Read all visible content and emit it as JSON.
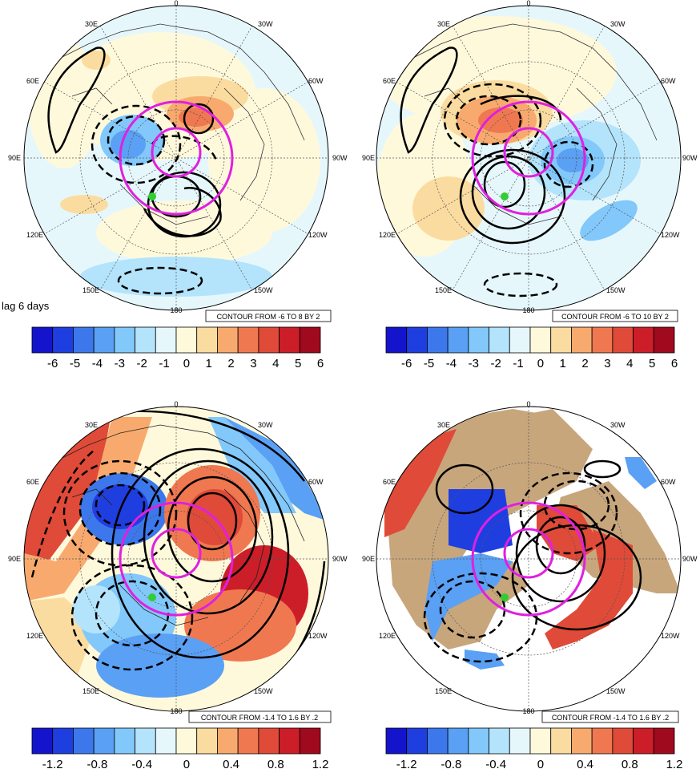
{
  "figure_label": "lag 6 days",
  "colors": {
    "magenta": "#e020e0",
    "marker": "#33cc33",
    "land": "#c8a67c",
    "contour": "#000000"
  },
  "panels": [
    {
      "id": "top-left",
      "lon_labels": {
        "top": "0",
        "top_right": "30W",
        "right_upper": "60W",
        "right": "90W",
        "right_lower": "120W",
        "bottom_right": "150W",
        "bottom": "180",
        "bottom_left": "150E",
        "left_lower": "120E",
        "left": "90E",
        "left_upper": "60E",
        "top_left": "30E"
      },
      "contour_note": "CONTOUR FROM -6 TO 8 BY 2",
      "colorbar": {
        "colors": [
          "#1414cc",
          "#1f3ee0",
          "#3c78ec",
          "#5aa0f4",
          "#82c8fa",
          "#b4e4fc",
          "#e6f7fc",
          "#fff9dc",
          "#fbdca0",
          "#f8aa6e",
          "#f07850",
          "#e04a38",
          "#cc1e28",
          "#a00a1e"
        ],
        "ticks": [
          "-6",
          "-5",
          "-4",
          "-3",
          "-2",
          "-1",
          "0",
          "1",
          "2",
          "3",
          "4",
          "5",
          "6"
        ]
      }
    },
    {
      "id": "top-right",
      "lon_labels": {
        "top": "0",
        "top_right": "30W",
        "right_upper": "60W",
        "right": "90W",
        "right_lower": "120W",
        "bottom_right": "150W",
        "bottom": "180",
        "bottom_left": "150E",
        "left_lower": "120E",
        "left": "90E",
        "left_upper": "60E",
        "top_left": "30E"
      },
      "contour_note": "CONTOUR FROM -6 TO 10 BY 2",
      "colorbar": {
        "colors": [
          "#1414cc",
          "#1f3ee0",
          "#3c78ec",
          "#5aa0f4",
          "#82c8fa",
          "#b4e4fc",
          "#e6f7fc",
          "#fff9dc",
          "#fbdca0",
          "#f8aa6e",
          "#f07850",
          "#e04a38",
          "#cc1e28",
          "#a00a1e"
        ],
        "ticks": [
          "-6",
          "-5",
          "-4",
          "-3",
          "-2",
          "-1",
          "0",
          "1",
          "2",
          "3",
          "4",
          "5",
          "6"
        ]
      }
    },
    {
      "id": "bottom-left",
      "lon_labels": {
        "top": "0",
        "top_right": "30W",
        "right_upper": "60W",
        "right": "90W",
        "right_lower": "120W",
        "bottom_right": "150W",
        "bottom": "180",
        "bottom_left": "150E",
        "left_lower": "120E",
        "left": "90E",
        "left_upper": "60E",
        "top_left": "30E"
      },
      "contour_note": "CONTOUR FROM -1.4 TO 1.6 BY .2",
      "colorbar": {
        "colors": [
          "#1414cc",
          "#1f3ee0",
          "#3c78ec",
          "#5aa0f4",
          "#82c8fa",
          "#b4e4fc",
          "#e6f7fc",
          "#fff9dc",
          "#fbdca0",
          "#f8aa6e",
          "#f07850",
          "#e04a38",
          "#cc1e28",
          "#a00a1e"
        ],
        "ticks": [
          "-1.2",
          "-0.8",
          "-0.4",
          "0",
          "0.4",
          "0.8",
          "1.2"
        ]
      }
    },
    {
      "id": "bottom-right",
      "lon_labels": {
        "top": "0",
        "top_right": "30W",
        "right_upper": "60W",
        "right": "90W",
        "right_lower": "120W",
        "bottom_right": "150W",
        "bottom": "180",
        "bottom_left": "150E",
        "left_lower": "120E",
        "left": "90E",
        "left_upper": "60E",
        "top_left": "30E"
      },
      "contour_note": "CONTOUR FROM -1.4 TO 1.6 BY .2",
      "colorbar": {
        "colors": [
          "#1414cc",
          "#1f3ee0",
          "#3c78ec",
          "#5aa0f4",
          "#82c8fa",
          "#b4e4fc",
          "#e6f7fc",
          "#fff9dc",
          "#fbdca0",
          "#f8aa6e",
          "#f07850",
          "#e04a38",
          "#cc1e28",
          "#a00a1e"
        ],
        "ticks": [
          "-1.2",
          "-0.8",
          "-0.4",
          "0",
          "0.4",
          "0.8",
          "1.2"
        ]
      }
    }
  ]
}
